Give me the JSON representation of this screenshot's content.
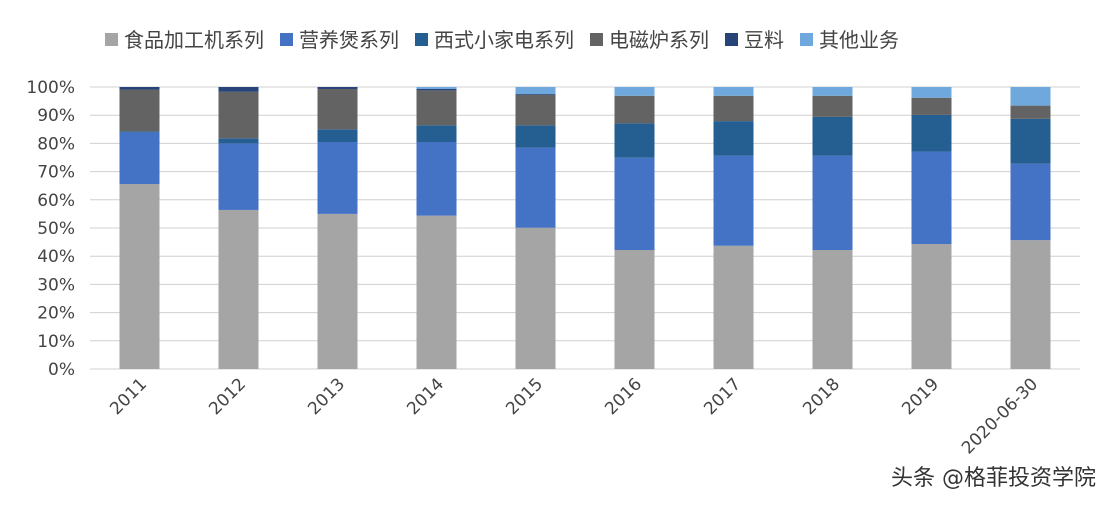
{
  "chart_data": {
    "type": "bar",
    "stacked": true,
    "categories": [
      "2011",
      "2012",
      "2013",
      "2014",
      "2015",
      "2016",
      "2017",
      "2018",
      "2019",
      "2020-06-30"
    ],
    "series": [
      {
        "name": "食品加工机系列",
        "color": "#a5a5a5",
        "values": [
          65.6,
          56.4,
          55.0,
          54.4,
          50.1,
          42.2,
          43.7,
          42.2,
          44.3,
          45.7
        ]
      },
      {
        "name": "营养煲系列",
        "color": "#4472c4",
        "values": [
          18.3,
          23.6,
          25.5,
          26.1,
          28.4,
          32.7,
          31.9,
          33.4,
          32.8,
          27.1
        ]
      },
      {
        "name": "西式小家电系列",
        "color": "#255e91",
        "values": [
          0.4,
          1.8,
          4.5,
          5.9,
          7.9,
          12.2,
          12.3,
          13.8,
          13.0,
          15.9
        ]
      },
      {
        "name": "电磁炉系列",
        "color": "#636363",
        "values": [
          14.8,
          16.5,
          14.3,
          12.4,
          10.8,
          9.8,
          9.0,
          7.5,
          6.1,
          4.7
        ]
      },
      {
        "name": "豆料",
        "color": "#264478",
        "values": [
          0.9,
          1.7,
          0.7,
          0.5,
          0.3,
          0,
          0,
          0,
          0,
          0
        ]
      },
      {
        "name": "其他业务",
        "color": "#6fa8dc",
        "values": [
          0,
          0,
          0,
          0.7,
          2.5,
          3.1,
          3.1,
          3.1,
          3.8,
          6.6
        ]
      }
    ],
    "yticks": [
      "0%",
      "10%",
      "20%",
      "30%",
      "40%",
      "50%",
      "60%",
      "70%",
      "80%",
      "90%",
      "100%"
    ],
    "ylim": [
      0,
      100
    ],
    "grid": true,
    "legend": "top"
  },
  "watermark": "头条 @格菲投资学院"
}
